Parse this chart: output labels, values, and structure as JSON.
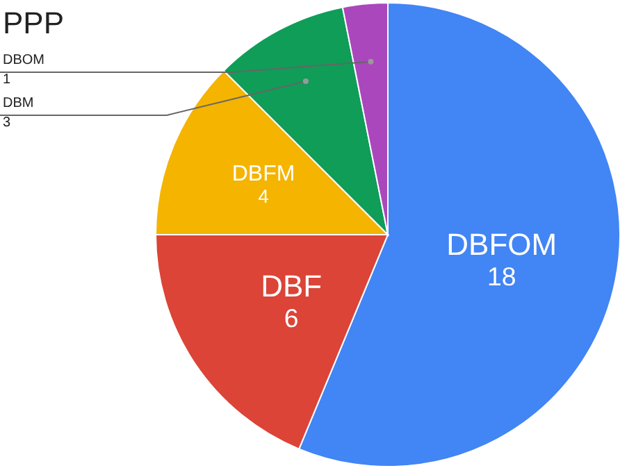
{
  "chart_data": {
    "type": "pie",
    "title": "PPP",
    "categories": [
      "DBFOM",
      "DBF",
      "DBFM",
      "DBM",
      "DBOM"
    ],
    "values": [
      18,
      6,
      4,
      3,
      1
    ],
    "colors": [
      "#4285f4",
      "#db4437",
      "#f4b400",
      "#0f9d58",
      "#ab47bc"
    ],
    "data_labels": true
  }
}
